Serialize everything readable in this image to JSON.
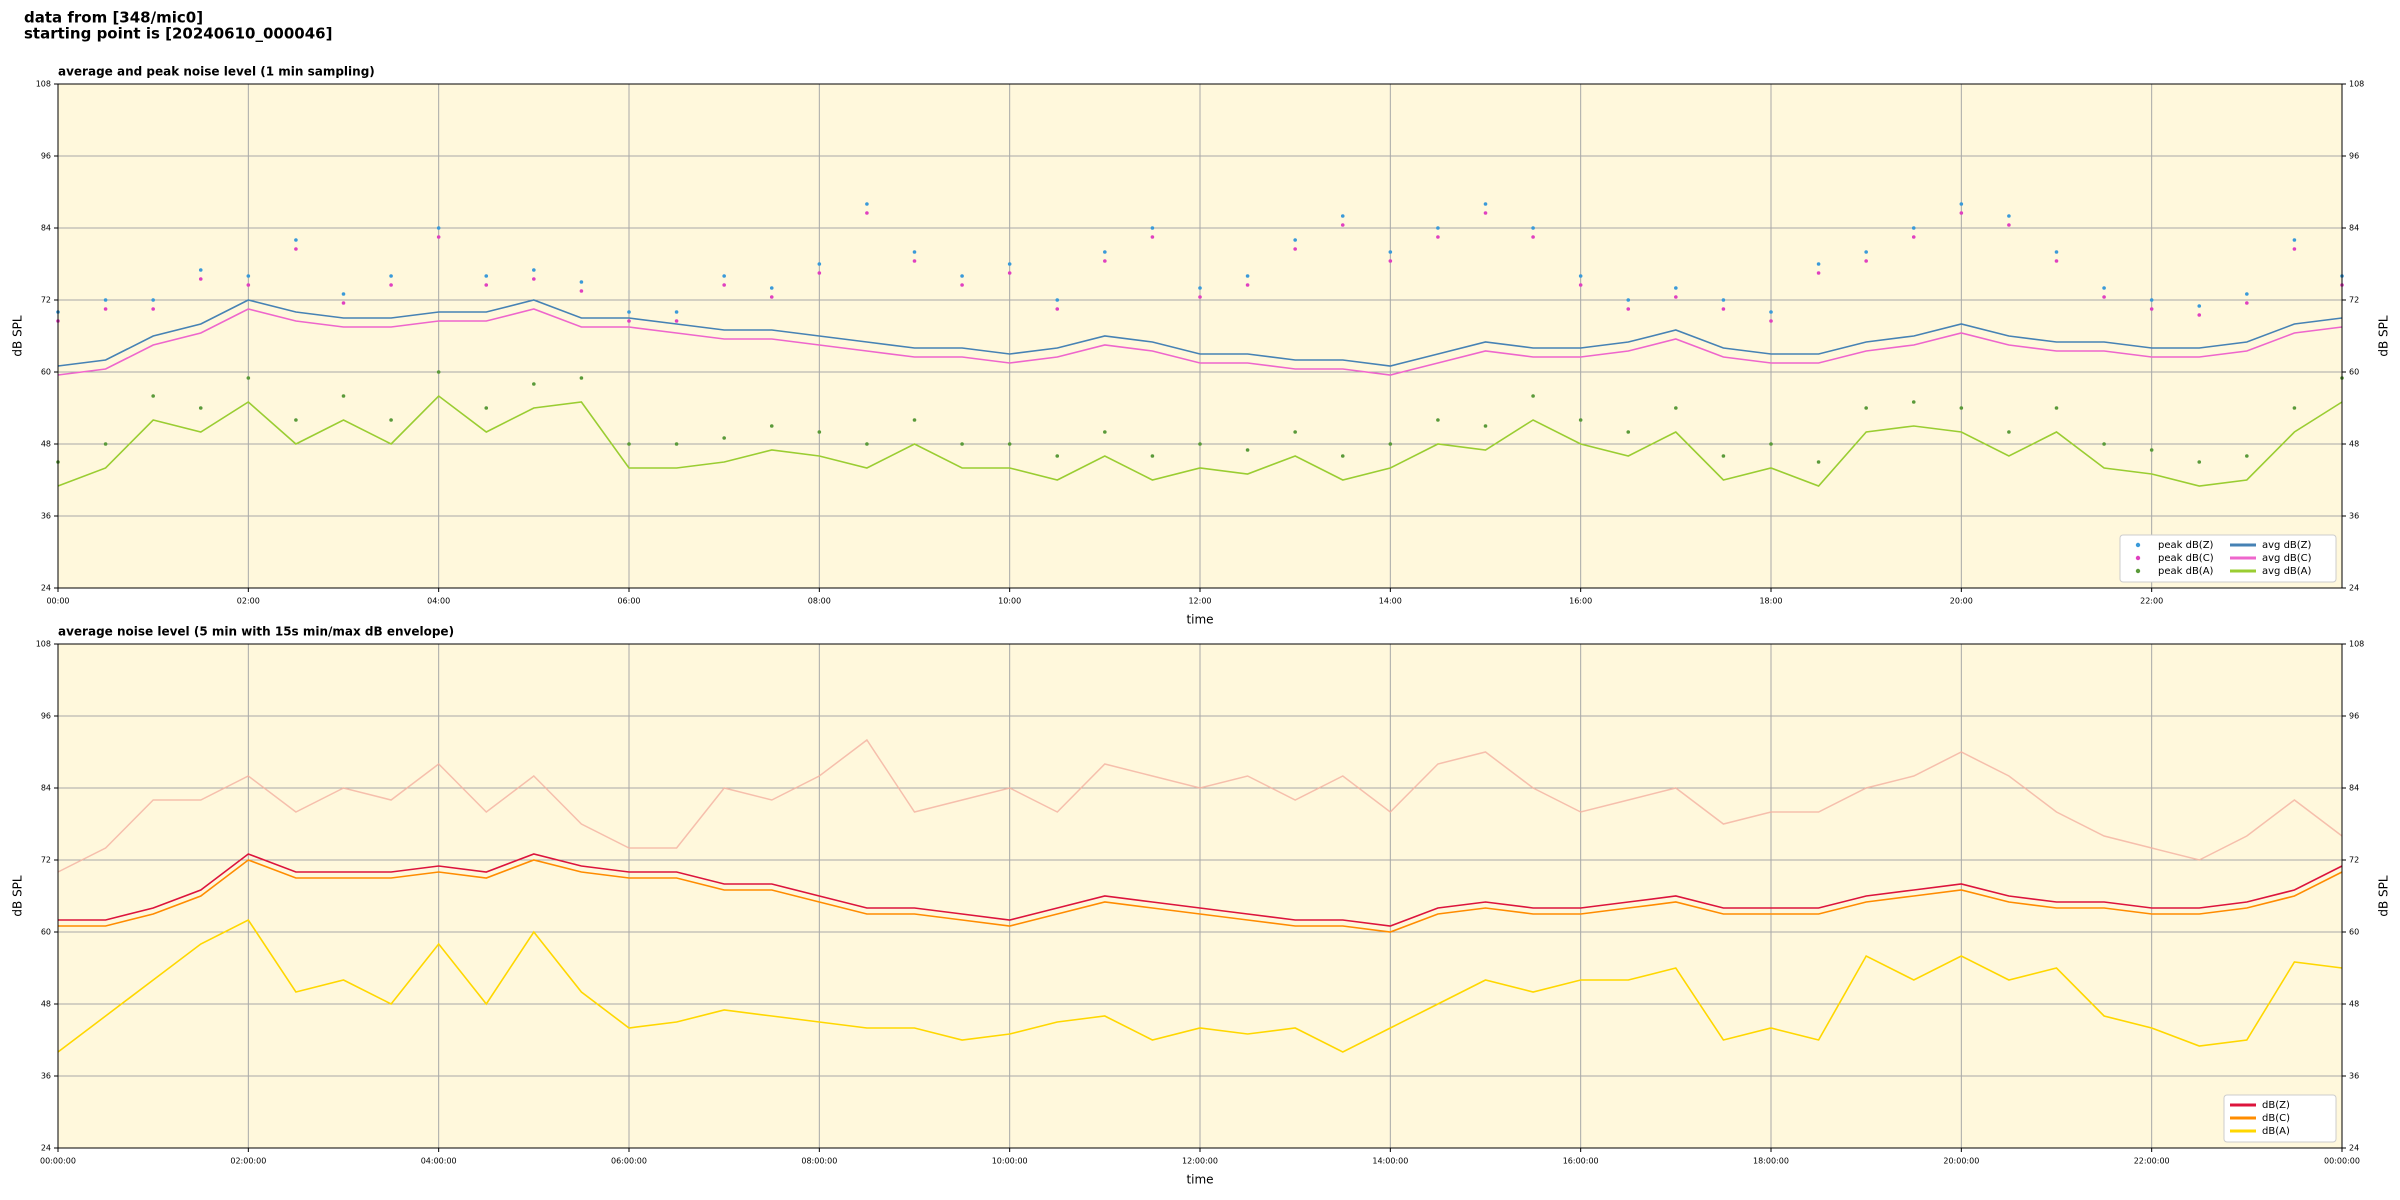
{
  "header": [
    "data from [348/mic0]",
    "starting point is [20240610_000046]"
  ],
  "chart_data": [
    {
      "type": "line",
      "title": "average and peak noise level (1 min sampling)",
      "xlabel": "time",
      "ylabel": "dB SPL",
      "x": [
        0,
        0.5,
        1,
        1.5,
        2,
        2.5,
        3,
        3.5,
        4,
        4.5,
        5,
        5.5,
        6,
        6.5,
        7,
        7.5,
        8,
        8.5,
        9,
        9.5,
        10,
        10.5,
        11,
        11.5,
        12,
        12.5,
        13,
        13.5,
        14,
        14.5,
        15,
        15.5,
        16,
        16.5,
        17,
        17.5,
        18,
        18.5,
        19,
        19.5,
        20,
        20.5,
        21,
        21.5,
        22,
        22.5,
        23,
        23.5,
        24
      ],
      "xlim": [
        0,
        24
      ],
      "xticks": [
        {
          "value": 0,
          "label": "00:00"
        },
        {
          "value": 2,
          "label": "02:00"
        },
        {
          "value": 4,
          "label": "04:00"
        },
        {
          "value": 6,
          "label": "06:00"
        },
        {
          "value": 8,
          "label": "08:00"
        },
        {
          "value": 10,
          "label": "10:00"
        },
        {
          "value": 12,
          "label": "12:00"
        },
        {
          "value": 14,
          "label": "14:00"
        },
        {
          "value": 16,
          "label": "16:00"
        },
        {
          "value": 18,
          "label": "18:00"
        },
        {
          "value": 20,
          "label": "20:00"
        },
        {
          "value": 22,
          "label": "22:00"
        }
      ],
      "ylim": [
        24,
        108
      ],
      "yticks": [
        24,
        36,
        48,
        60,
        72,
        84,
        96,
        108
      ],
      "grid": true,
      "legend": "lower right",
      "legend_columns": 2,
      "series": [
        {
          "name": "peak dB(Z)",
          "style": "points",
          "color": "#3a9ad9",
          "values": [
            70,
            72,
            72,
            77,
            76,
            82,
            73,
            76,
            84,
            76,
            77,
            75,
            70,
            70,
            76,
            74,
            78,
            88,
            80,
            76,
            78,
            72,
            80,
            84,
            74,
            76,
            82,
            86,
            80,
            84,
            88,
            84,
            76,
            72,
            74,
            72,
            70,
            78,
            80,
            84,
            88,
            86,
            80,
            74,
            72,
            71,
            73,
            82,
            76
          ]
        },
        {
          "name": "peak dB(C)",
          "style": "points",
          "color": "#e040c0",
          "values": [
            68.5,
            70.5,
            70.5,
            75.5,
            74.5,
            80.5,
            71.5,
            74.5,
            82.5,
            74.5,
            75.5,
            73.5,
            68.5,
            68.5,
            74.5,
            72.5,
            76.5,
            86.5,
            78.5,
            74.5,
            76.5,
            70.5,
            78.5,
            82.5,
            72.5,
            74.5,
            80.5,
            84.5,
            78.5,
            82.5,
            86.5,
            82.5,
            74.5,
            70.5,
            72.5,
            70.5,
            68.5,
            76.5,
            78.5,
            82.5,
            86.5,
            84.5,
            78.5,
            72.5,
            70.5,
            69.5,
            71.5,
            80.5,
            74.5
          ]
        },
        {
          "name": "peak dB(A)",
          "style": "points",
          "color": "#5a9a3a",
          "values": [
            45,
            48,
            56,
            54,
            59,
            52,
            56,
            52,
            60,
            54,
            58,
            59,
            48,
            48,
            49,
            51,
            50,
            48,
            52,
            48,
            48,
            46,
            50,
            46,
            48,
            47,
            50,
            46,
            48,
            52,
            51,
            56,
            52,
            50,
            54,
            46,
            48,
            45,
            54,
            55,
            54,
            50,
            54,
            48,
            47,
            45,
            46,
            54,
            59
          ]
        },
        {
          "name": "avg dB(Z)",
          "style": "line",
          "color": "#4682b4",
          "values": [
            61,
            62,
            66,
            68,
            72,
            70,
            69,
            69,
            70,
            70,
            72,
            69,
            69,
            68,
            67,
            67,
            66,
            65,
            64,
            64,
            63,
            64,
            66,
            65,
            63,
            63,
            62,
            62,
            61,
            63,
            65,
            64,
            64,
            65,
            67,
            64,
            63,
            63,
            65,
            66,
            68,
            66,
            65,
            65,
            64,
            64,
            65,
            68,
            69
          ]
        },
        {
          "name": "avg dB(C)",
          "style": "line",
          "color": "#ee66cc",
          "values": [
            59.5,
            60.5,
            64.5,
            66.5,
            70.5,
            68.5,
            67.5,
            67.5,
            68.5,
            68.5,
            70.5,
            67.5,
            67.5,
            66.5,
            65.5,
            65.5,
            64.5,
            63.5,
            62.5,
            62.5,
            61.5,
            62.5,
            64.5,
            63.5,
            61.5,
            61.5,
            60.5,
            60.5,
            59.5,
            61.5,
            63.5,
            62.5,
            62.5,
            63.5,
            65.5,
            62.5,
            61.5,
            61.5,
            63.5,
            64.5,
            66.5,
            64.5,
            63.5,
            63.5,
            62.5,
            62.5,
            63.5,
            66.5,
            67.5
          ]
        },
        {
          "name": "avg dB(A)",
          "style": "line",
          "color": "#9acd32",
          "values": [
            41,
            44,
            52,
            50,
            55,
            48,
            52,
            48,
            56,
            50,
            54,
            55,
            44,
            44,
            45,
            47,
            46,
            44,
            48,
            44,
            44,
            42,
            46,
            42,
            44,
            43,
            46,
            42,
            44,
            48,
            47,
            52,
            48,
            46,
            50,
            42,
            44,
            41,
            50,
            51,
            50,
            46,
            50,
            44,
            43,
            41,
            42,
            50,
            55
          ]
        }
      ]
    },
    {
      "type": "line",
      "title": "average noise level (5 min with 15s min/max dB envelope)",
      "xlabel": "time",
      "ylabel": "dB SPL",
      "x": [
        0,
        0.5,
        1,
        1.5,
        2,
        2.5,
        3,
        3.5,
        4,
        4.5,
        5,
        5.5,
        6,
        6.5,
        7,
        7.5,
        8,
        8.5,
        9,
        9.5,
        10,
        10.5,
        11,
        11.5,
        12,
        12.5,
        13,
        13.5,
        14,
        14.5,
        15,
        15.5,
        16,
        16.5,
        17,
        17.5,
        18,
        18.5,
        19,
        19.5,
        20,
        20.5,
        21,
        21.5,
        22,
        22.5,
        23,
        23.5,
        24
      ],
      "xlim": [
        0,
        24
      ],
      "xticks": [
        {
          "value": 0,
          "label": "00:00:00"
        },
        {
          "value": 2,
          "label": "02:00:00"
        },
        {
          "value": 4,
          "label": "04:00:00"
        },
        {
          "value": 6,
          "label": "06:00:00"
        },
        {
          "value": 8,
          "label": "08:00:00"
        },
        {
          "value": 10,
          "label": "10:00:00"
        },
        {
          "value": 12,
          "label": "12:00:00"
        },
        {
          "value": 14,
          "label": "14:00:00"
        },
        {
          "value": 16,
          "label": "16:00:00"
        },
        {
          "value": 18,
          "label": "18:00:00"
        },
        {
          "value": 20,
          "label": "20:00:00"
        },
        {
          "value": 22,
          "label": "22:00:00"
        },
        {
          "value": 24,
          "label": "00:00:00"
        }
      ],
      "ylim": [
        24,
        108
      ],
      "yticks": [
        24,
        36,
        48,
        60,
        72,
        84,
        96,
        108
      ],
      "grid": true,
      "legend": "lower right",
      "legend_columns": 1,
      "envelope": {
        "color": "#f4b0a0",
        "values": [
          70,
          74,
          82,
          82,
          86,
          80,
          84,
          82,
          88,
          80,
          86,
          78,
          74,
          74,
          84,
          82,
          86,
          92,
          80,
          82,
          84,
          80,
          88,
          86,
          84,
          86,
          82,
          86,
          80,
          88,
          90,
          84,
          80,
          82,
          84,
          78,
          80,
          80,
          84,
          86,
          90,
          86,
          80,
          76,
          74,
          72,
          76,
          82,
          76
        ]
      },
      "series": [
        {
          "name": "dB(Z)",
          "style": "line",
          "color": "#dc143c",
          "values": [
            62,
            62,
            64,
            67,
            73,
            70,
            70,
            70,
            71,
            70,
            73,
            71,
            70,
            70,
            68,
            68,
            66,
            64,
            64,
            63,
            62,
            64,
            66,
            65,
            64,
            63,
            62,
            62,
            61,
            64,
            65,
            64,
            64,
            65,
            66,
            64,
            64,
            64,
            66,
            67,
            68,
            66,
            65,
            65,
            64,
            64,
            65,
            67,
            71
          ]
        },
        {
          "name": "dB(C)",
          "style": "line",
          "color": "#ff8c00",
          "values": [
            61,
            61,
            63,
            66,
            72,
            69,
            69,
            69,
            70,
            69,
            72,
            70,
            69,
            69,
            67,
            67,
            65,
            63,
            63,
            62,
            61,
            63,
            65,
            64,
            63,
            62,
            61,
            61,
            60,
            63,
            64,
            63,
            63,
            64,
            65,
            63,
            63,
            63,
            65,
            66,
            67,
            65,
            64,
            64,
            63,
            63,
            64,
            66,
            70
          ]
        },
        {
          "name": "dB(A)",
          "style": "line",
          "color": "#ffd700",
          "values": [
            40,
            46,
            52,
            58,
            62,
            50,
            52,
            48,
            58,
            48,
            60,
            50,
            44,
            45,
            47,
            46,
            45,
            44,
            44,
            42,
            43,
            45,
            46,
            42,
            44,
            43,
            44,
            40,
            44,
            48,
            52,
            50,
            52,
            52,
            54,
            42,
            44,
            42,
            56,
            52,
            56,
            52,
            54,
            46,
            44,
            41,
            42,
            55,
            54
          ]
        }
      ]
    }
  ]
}
